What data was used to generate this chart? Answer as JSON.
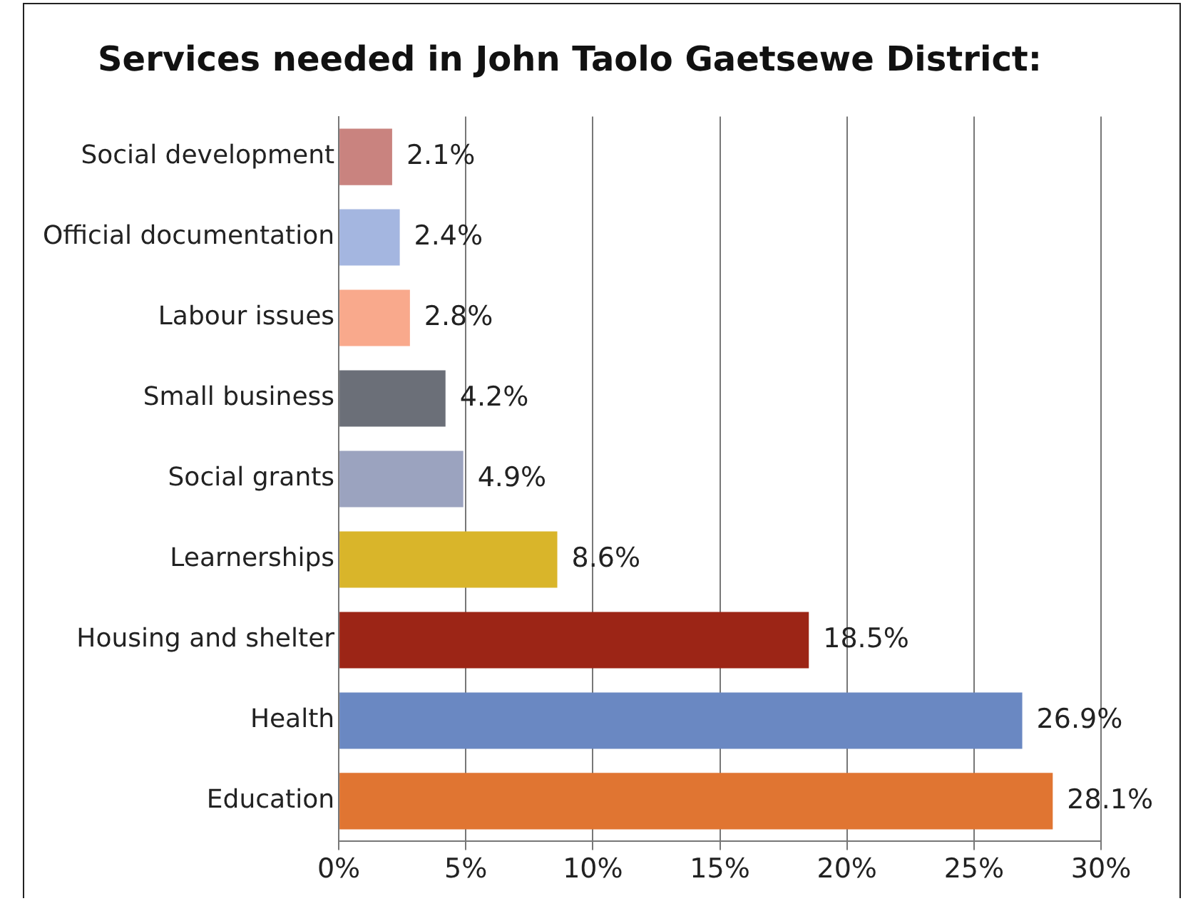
{
  "chart_data": {
    "type": "bar",
    "orientation": "horizontal",
    "title": "Services needed in John Taolo Gaetsewe District:",
    "categories": [
      "Social development",
      "Official documentation",
      "Labour issues",
      "Small business",
      "Social grants",
      "Learnerships",
      "Housing and shelter",
      "Health",
      "Education"
    ],
    "values": [
      2.1,
      2.4,
      2.8,
      4.2,
      4.9,
      8.6,
      18.5,
      26.9,
      28.1
    ],
    "colors": [
      "#c9837f",
      "#a4b6e0",
      "#f9a98c",
      "#6b6f78",
      "#9ba3bf",
      "#d9b52a",
      "#9c2516",
      "#6a88c2",
      "#e07532"
    ],
    "value_labels": [
      "2.1%",
      "2.4%",
      "2.8%",
      "4.2%",
      "4.9%",
      "8.6%",
      "18.5%",
      "26.9%",
      "28.1%"
    ],
    "xlim": [
      0,
      30
    ],
    "xticks": [
      {
        "value": 0,
        "label": "0%"
      },
      {
        "value": 5,
        "label": "5%"
      },
      {
        "value": 10,
        "label": "10%"
      },
      {
        "value": 15,
        "label": "15%"
      },
      {
        "value": 20,
        "label": "20%"
      },
      {
        "value": 25,
        "label": "25%"
      },
      {
        "value": 30,
        "label": "30%"
      }
    ],
    "grid": "x",
    "legend": false
  }
}
